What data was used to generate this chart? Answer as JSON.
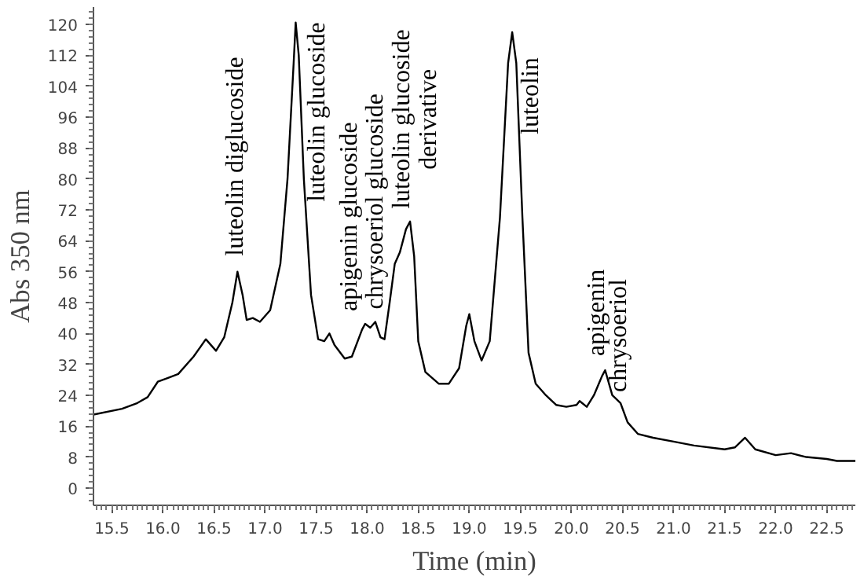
{
  "chart_data": {
    "type": "line",
    "xlabel": "Time (min)",
    "ylabel": "Abs 350 nm",
    "xlim": [
      15.32,
      22.78
    ],
    "ylim": [
      -4.5,
      124.5
    ],
    "xticks": [
      15.5,
      {
        "value": 16,
        "label": "16.0"
      },
      16.5,
      {
        "value": 17,
        "label": "17.0"
      },
      17.5,
      {
        "value": 18,
        "label": "18.0"
      },
      18.5,
      {
        "value": 19,
        "label": "19.0"
      },
      19.5,
      {
        "value": 20,
        "label": "20.0"
      },
      20.5,
      {
        "value": 21,
        "label": "21.0"
      },
      21.5,
      {
        "value": 22,
        "label": "22.0"
      },
      22.5
    ],
    "yticks": [
      0,
      8,
      16,
      24,
      32,
      40,
      48,
      56,
      64,
      72,
      80,
      88,
      96,
      104,
      112,
      120
    ],
    "grid": false,
    "marker": "none",
    "line_style": "solid",
    "series": [
      {
        "color": "#000000",
        "x": [
          15.32,
          15.6,
          15.75,
          15.85,
          15.95,
          16.05,
          16.15,
          16.3,
          16.42,
          16.52,
          16.6,
          16.68,
          16.73,
          16.78,
          16.82,
          16.88,
          16.95,
          17.05,
          17.15,
          17.22,
          17.28,
          17.3,
          17.33,
          17.38,
          17.45,
          17.52,
          17.58,
          17.63,
          17.68,
          17.78,
          17.85,
          17.95,
          17.98,
          18.03,
          18.08,
          18.13,
          18.17,
          18.22,
          18.27,
          18.32,
          18.38,
          18.42,
          18.46,
          18.5,
          18.57,
          18.7,
          18.8,
          18.9,
          18.97,
          19.0,
          19.05,
          19.12,
          19.2,
          19.3,
          19.38,
          19.42,
          19.46,
          19.52,
          19.58,
          19.65,
          19.75,
          19.85,
          19.95,
          20.05,
          20.08,
          20.15,
          20.22,
          20.3,
          20.33,
          20.4,
          20.48,
          20.55,
          20.65,
          20.8,
          21.0,
          21.2,
          21.5,
          21.6,
          21.7,
          21.8,
          22.0,
          22.15,
          22.3,
          22.5,
          22.6,
          22.78
        ],
        "values": [
          19,
          20.5,
          22,
          23.5,
          27.5,
          28.5,
          29.5,
          34,
          38.5,
          35.5,
          39,
          48,
          56,
          50,
          43.5,
          44,
          43,
          46,
          58,
          80,
          110,
          120.5,
          112,
          80,
          50,
          38.5,
          38,
          40,
          37,
          33.5,
          34,
          41,
          42.5,
          41.5,
          43,
          39,
          38.5,
          48,
          58,
          61,
          67,
          69,
          60,
          38,
          30,
          27,
          27,
          31,
          42,
          45,
          38,
          33,
          38,
          70,
          110,
          118,
          110,
          70,
          35,
          27,
          24,
          21.5,
          21,
          21.5,
          22.5,
          21,
          24,
          29,
          30.5,
          24,
          22,
          17,
          14,
          13,
          12,
          11,
          10,
          10.5,
          13,
          10,
          8.5,
          9,
          8,
          7.5,
          7,
          7
        ]
      }
    ],
    "annotations": [
      {
        "text": "luteolin diglucoside",
        "x": 16.73,
        "y": 56
      },
      {
        "text": "luteolin glucoside",
        "x": 17.3,
        "y": 120.5
      },
      {
        "text": "apigenin glucoside",
        "x": 17.98,
        "y": 42.5
      },
      {
        "text": "chrysoeriol glucoside",
        "x": 18.08,
        "y": 43
      },
      {
        "text": "luteolin glucoside",
        "x": 18.42,
        "y": 69
      },
      {
        "text": "derivative",
        "x": 18.42,
        "y": 69
      },
      {
        "text": "luteolin",
        "x": 19.42,
        "y": 118
      },
      {
        "text": "apigenin",
        "x": 20.33,
        "y": 30.5
      },
      {
        "text": "chrysoeriol",
        "x": 20.33,
        "y": 30.5
      }
    ]
  }
}
